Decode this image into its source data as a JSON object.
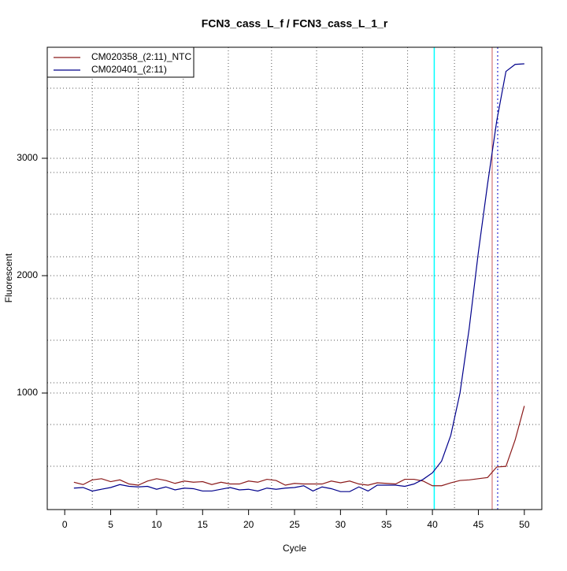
{
  "chart_data": {
    "type": "line",
    "title": "FCN3_cass_L_f / FCN3_cass_L_1_r",
    "xlabel": "Cycle",
    "ylabel": "Fluorescent",
    "x": [
      1,
      2,
      3,
      4,
      5,
      6,
      7,
      8,
      9,
      10,
      11,
      12,
      13,
      14,
      15,
      16,
      17,
      18,
      19,
      20,
      21,
      22,
      23,
      24,
      25,
      26,
      27,
      28,
      29,
      30,
      31,
      32,
      33,
      34,
      35,
      36,
      37,
      38,
      39,
      40,
      41,
      42,
      43,
      44,
      45,
      46,
      47,
      48,
      49,
      50
    ],
    "series": [
      {
        "name": "CM020358_(2:11)_NTC",
        "color": "#8b1a1a",
        "values": [
          240,
          220,
          260,
          270,
          245,
          260,
          225,
          215,
          250,
          270,
          255,
          230,
          250,
          240,
          245,
          220,
          240,
          225,
          225,
          250,
          240,
          265,
          255,
          215,
          230,
          225,
          225,
          225,
          250,
          235,
          250,
          225,
          215,
          235,
          230,
          225,
          265,
          265,
          250,
          210,
          210,
          235,
          255,
          260,
          270,
          280,
          370,
          375,
          600,
          890
        ]
      },
      {
        "name": "CM020401_(2:11)",
        "color": "#00008b",
        "values": [
          190,
          195,
          165,
          180,
          195,
          220,
          205,
          200,
          205,
          180,
          200,
          175,
          190,
          185,
          165,
          165,
          180,
          195,
          175,
          180,
          165,
          190,
          180,
          190,
          195,
          210,
          165,
          200,
          185,
          160,
          160,
          200,
          165,
          215,
          215,
          215,
          205,
          225,
          265,
          320,
          420,
          640,
          1000,
          1550,
          2200,
          2780,
          3320,
          3740,
          3800,
          3805
        ]
      }
    ],
    "xlim": [
      -1.9,
      51.9
    ],
    "ylim": [
      7,
      3946
    ],
    "xticks": [
      0,
      5,
      10,
      15,
      20,
      25,
      30,
      35,
      40,
      45,
      50
    ],
    "yticks": [
      1000,
      2000,
      3000
    ],
    "grid_x": [
      3,
      8,
      12.9,
      17.8,
      22.5,
      27.4,
      32.4,
      37.3,
      42.4
    ],
    "grid_y": [
      376,
      732,
      1087,
      1450,
      1805,
      2161,
      2523,
      2879,
      3242,
      3597
    ],
    "vlines": [
      {
        "value": 40.2,
        "color": "#00ffff",
        "dash": "none"
      },
      {
        "value": 46.5,
        "color": "#cd5c5c",
        "dash": "none"
      },
      {
        "value": 47.1,
        "color": "#0000cd",
        "dash": "2,3"
      }
    ],
    "legend": "top-left"
  }
}
